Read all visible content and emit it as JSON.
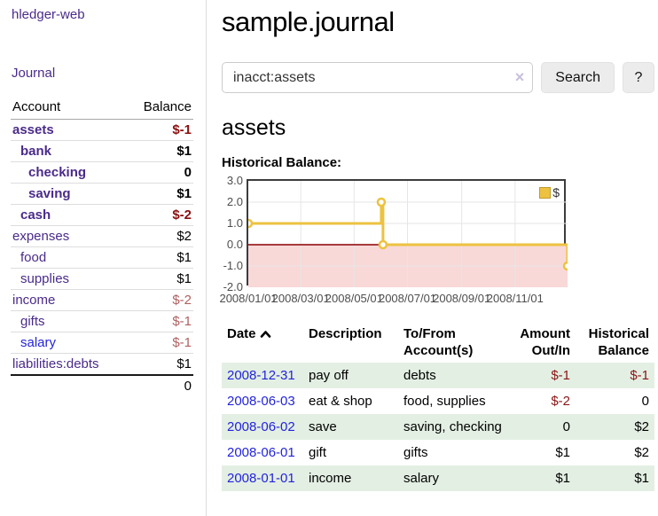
{
  "sidebar": {
    "brand": "hledger-web",
    "journal_link": "Journal",
    "accounts_table": {
      "header_account": "Account",
      "header_balance": "Balance",
      "rows": [
        {
          "name": "assets",
          "depth": 0,
          "bold": true,
          "balance": "$-1",
          "negative": true,
          "dim": false,
          "link": "purple"
        },
        {
          "name": "bank",
          "depth": 1,
          "bold": true,
          "balance": "$1",
          "negative": false,
          "dim": false,
          "link": "purple"
        },
        {
          "name": "checking",
          "depth": 2,
          "bold": true,
          "balance": "0",
          "negative": false,
          "dim": false,
          "link": "purple"
        },
        {
          "name": "saving",
          "depth": 2,
          "bold": true,
          "balance": "$1",
          "negative": false,
          "dim": false,
          "link": "purple"
        },
        {
          "name": "cash",
          "depth": 1,
          "bold": true,
          "balance": "$-2",
          "negative": true,
          "dim": false,
          "link": "purple"
        },
        {
          "name": "expenses",
          "depth": 0,
          "bold": false,
          "balance": "$2",
          "negative": false,
          "dim": false,
          "link": "purple"
        },
        {
          "name": "food",
          "depth": 1,
          "bold": false,
          "balance": "$1",
          "negative": false,
          "dim": false,
          "link": "purple"
        },
        {
          "name": "supplies",
          "depth": 1,
          "bold": false,
          "balance": "$1",
          "negative": false,
          "dim": false,
          "link": "purple"
        },
        {
          "name": "income",
          "depth": 0,
          "bold": false,
          "balance": "$-2",
          "negative": true,
          "dim": true,
          "link": "purple"
        },
        {
          "name": "gifts",
          "depth": 1,
          "bold": false,
          "balance": "$-1",
          "negative": true,
          "dim": true,
          "link": "purple"
        },
        {
          "name": "salary",
          "depth": 1,
          "bold": false,
          "balance": "$-1",
          "negative": true,
          "dim": true,
          "link": "blue"
        },
        {
          "name": "liabilities:debts",
          "depth": 0,
          "bold": false,
          "balance": "$1",
          "negative": false,
          "dim": false,
          "link": "purple"
        }
      ],
      "total": "0"
    }
  },
  "header": {
    "title": "sample.journal"
  },
  "search": {
    "value": "inacct:assets",
    "clear_icon": "×",
    "search_label": "Search",
    "help_label": "?"
  },
  "account_page": {
    "heading": "assets",
    "chart_label": "Historical Balance:"
  },
  "chart_data": {
    "type": "line",
    "step": true,
    "title": "Historical Balance",
    "series": [
      {
        "name": "$",
        "color": "#edc240",
        "points": [
          {
            "x": "2008-01-01",
            "y": 1
          },
          {
            "x": "2008-06-01",
            "y": 2
          },
          {
            "x": "2008-06-03",
            "y": 0
          },
          {
            "x": "2008-12-31",
            "y": -1
          }
        ]
      }
    ],
    "x_start": "2008-01-01",
    "x_end": "2008-12-31",
    "x_ticks": [
      {
        "date": "2008-01-01",
        "label": "2008/01/01"
      },
      {
        "date": "2008-03-01",
        "label": "2008/03/01"
      },
      {
        "date": "2008-05-01",
        "label": "2008/05/01"
      },
      {
        "date": "2008-07-01",
        "label": "2008/07/01"
      },
      {
        "date": "2008-09-01",
        "label": "2008/09/01"
      },
      {
        "date": "2008-11-01",
        "label": "2008/11/01"
      }
    ],
    "y_ticks": [
      "3.0",
      "2.0",
      "1.0",
      "0.0",
      "-1.0",
      "-2.0"
    ],
    "ylim": [
      -2,
      3
    ],
    "grid": true,
    "legend": {
      "label": "$",
      "position": "top-right"
    },
    "negative_region_color": "#f9d8d8",
    "zero_line_color": "#8b0000",
    "grid_color": "#e6e6e6"
  },
  "register_table": {
    "headers": {
      "date": "Date",
      "description": "Description",
      "accounts": "To/From Account(s)",
      "amount": "Amount Out/In",
      "balance": "Historical Balance"
    },
    "sort_icon": "chevron-up",
    "rows": [
      {
        "date": "2008-12-31",
        "description": "pay off",
        "accounts": "debts",
        "amount": "$-1",
        "amount_negative": true,
        "balance": "$-1",
        "balance_negative": true,
        "green": true
      },
      {
        "date": "2008-06-03",
        "description": "eat & shop",
        "accounts": "food, supplies",
        "amount": "$-2",
        "amount_negative": true,
        "balance": "0",
        "balance_negative": false,
        "green": false
      },
      {
        "date": "2008-06-02",
        "description": "save",
        "accounts": "saving, checking",
        "amount": "0",
        "amount_negative": false,
        "balance": "$2",
        "balance_negative": false,
        "green": true
      },
      {
        "date": "2008-06-01",
        "description": "gift",
        "accounts": "gifts",
        "amount": "$1",
        "amount_negative": false,
        "balance": "$2",
        "balance_negative": false,
        "green": false
      },
      {
        "date": "2008-01-01",
        "description": "income",
        "accounts": "salary",
        "amount": "$1",
        "amount_negative": false,
        "balance": "$1",
        "balance_negative": false,
        "green": true
      }
    ]
  },
  "colors": {
    "link_purple": "#4a2b8a",
    "link_blue": "#2323dd",
    "negative_strong": "#8b0f0f",
    "negative_dim": "#b06060",
    "row_green": "#e3efe3",
    "series_yellow": "#edc240"
  }
}
